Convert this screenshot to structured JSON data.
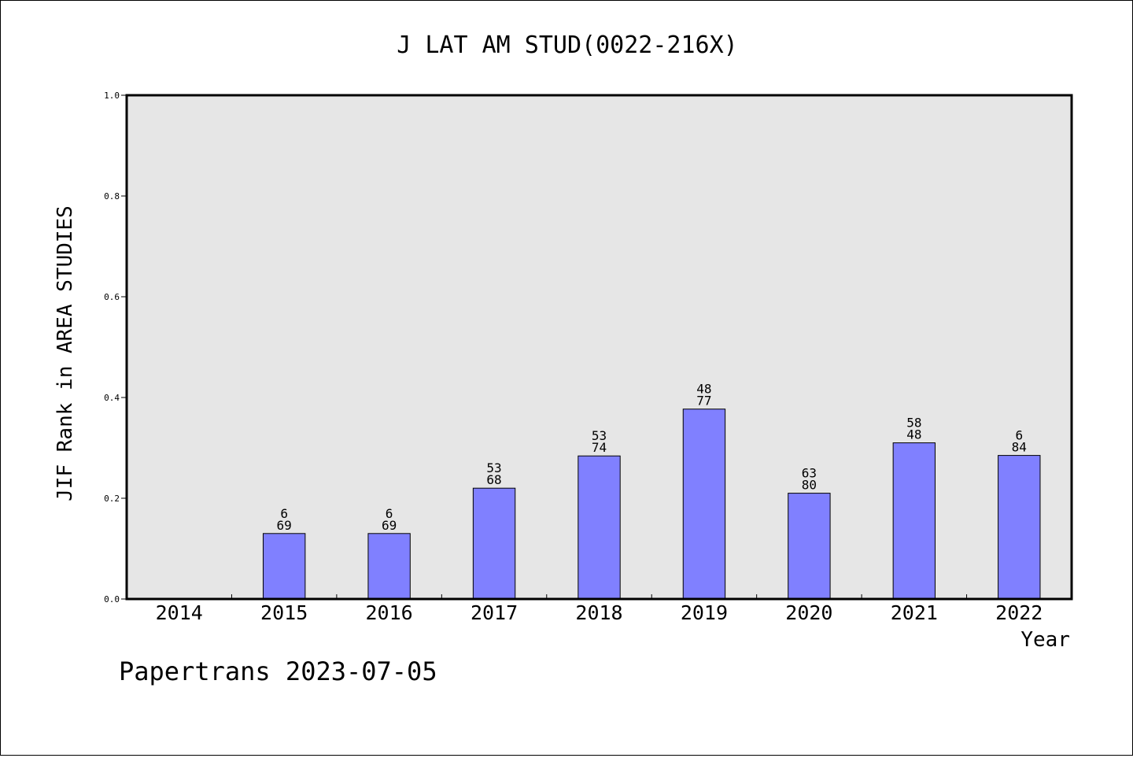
{
  "chart_data": {
    "type": "bar",
    "title": "J LAT AM STUD(0022-216X)",
    "xlabel": "Year",
    "ylabel": "JIF Rank in AREA STUDIES",
    "ylim": [
      0,
      1.0
    ],
    "yticks": [
      "0.0",
      "0.2",
      "0.4",
      "0.6",
      "0.8",
      "1.0"
    ],
    "categories": [
      "2014",
      "2015",
      "2016",
      "2017",
      "2018",
      "2019",
      "2020",
      "2021",
      "2022"
    ],
    "series": [
      {
        "values": [
          null,
          0.13,
          0.13,
          0.22,
          0.284,
          0.377,
          0.21,
          0.31,
          0.285
        ],
        "label_top": [
          "",
          "6",
          "6",
          "53",
          "53",
          "48",
          "63",
          "58",
          "6"
        ],
        "label_bottom": [
          "",
          "69",
          "69",
          "68",
          "74",
          "77",
          "80",
          "48",
          "84"
        ]
      }
    ],
    "grid": false,
    "colors": {
      "bar": "#8080ff",
      "plot_background": "#e6e6e6"
    }
  },
  "footer": "Papertrans 2023-07-05"
}
